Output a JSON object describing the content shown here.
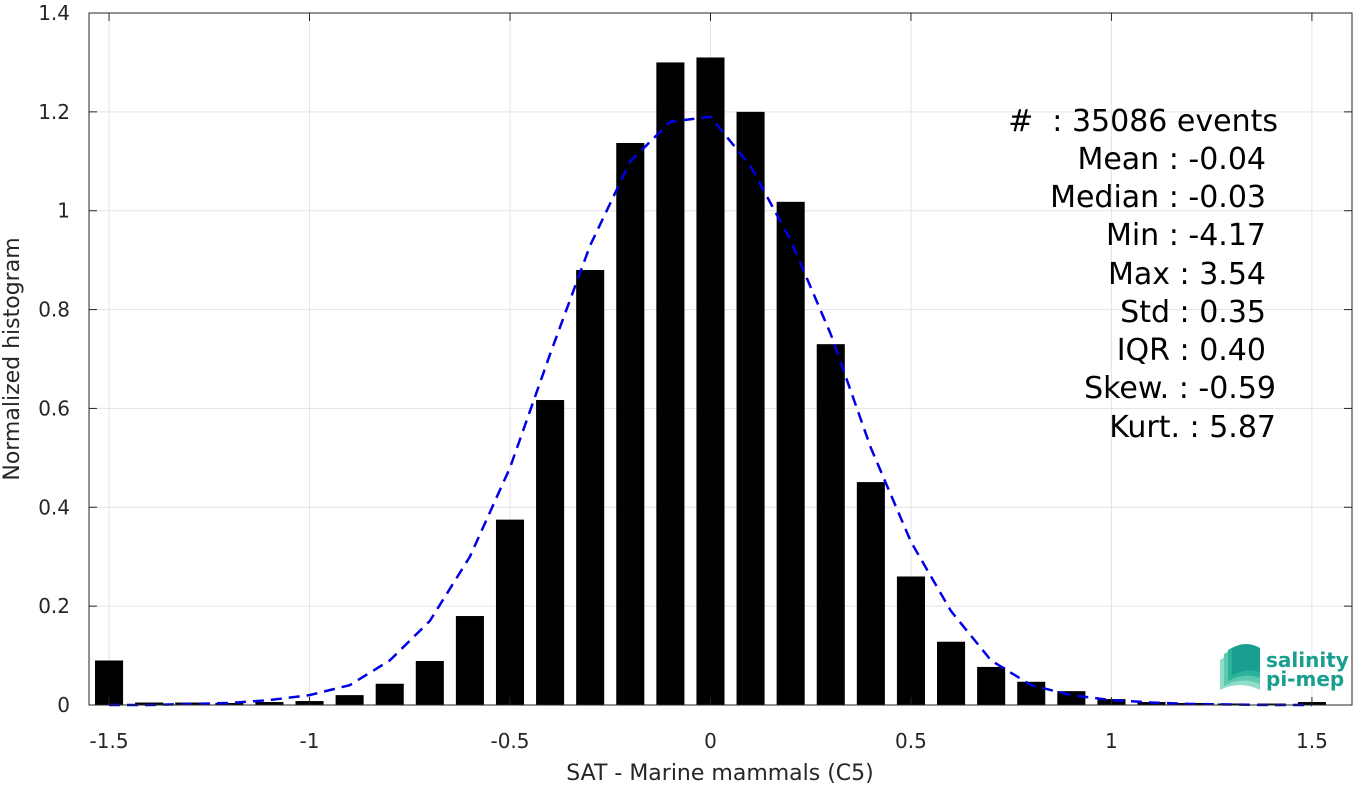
{
  "chart_data": {
    "type": "bar",
    "xlabel": "SAT - Marine mammals (C5)",
    "ylabel": "Normalized histogram",
    "xlim": [
      -1.55,
      1.6
    ],
    "ylim": [
      0,
      1.4
    ],
    "xticks": [
      -1.5,
      -1,
      -0.5,
      0,
      0.5,
      1,
      1.5
    ],
    "xtick_labels": [
      "-1.5",
      "-1",
      "-0.5",
      "0",
      "0.5",
      "1",
      "1.5"
    ],
    "yticks": [
      0,
      0.2,
      0.4,
      0.6,
      0.8,
      1,
      1.2,
      1.4
    ],
    "ytick_labels": [
      "0",
      "0.2",
      "0.4",
      "0.6",
      "0.8",
      "1",
      "1.2",
      "1.4"
    ],
    "grid": true,
    "bar_width": 0.07,
    "bar_color": "#000000",
    "bins": [
      -1.5,
      -1.4,
      -1.3,
      -1.2,
      -1.1,
      -1.0,
      -0.9,
      -0.8,
      -0.7,
      -0.6,
      -0.5,
      -0.4,
      -0.3,
      -0.2,
      -0.1,
      0.0,
      0.1,
      0.2,
      0.3,
      0.4,
      0.5,
      0.6,
      0.7,
      0.8,
      0.9,
      1.0,
      1.1,
      1.2,
      1.3,
      1.4,
      1.5
    ],
    "values": [
      0.09,
      0.005,
      0.005,
      0.004,
      0.006,
      0.008,
      0.02,
      0.043,
      0.089,
      0.18,
      0.375,
      0.617,
      0.88,
      1.137,
      1.3,
      1.31,
      1.2,
      1.018,
      0.73,
      0.451,
      0.26,
      0.128,
      0.077,
      0.047,
      0.028,
      0.012,
      0.006,
      0.004,
      0.003,
      0.003,
      0.006
    ],
    "fit_series": {
      "style": "dashed",
      "color": "#0000e6",
      "x": [
        -1.5,
        -1.4,
        -1.3,
        -1.2,
        -1.1,
        -1.0,
        -0.9,
        -0.8,
        -0.7,
        -0.6,
        -0.5,
        -0.4,
        -0.3,
        -0.2,
        -0.1,
        0.0,
        0.1,
        0.2,
        0.3,
        0.4,
        0.5,
        0.6,
        0.7,
        0.8,
        0.9,
        1.0,
        1.1,
        1.2,
        1.3,
        1.4,
        1.5
      ],
      "y": [
        0.0,
        0.0,
        0.002,
        0.004,
        0.01,
        0.02,
        0.04,
        0.09,
        0.17,
        0.3,
        0.48,
        0.71,
        0.93,
        1.1,
        1.18,
        1.19,
        1.09,
        0.94,
        0.75,
        0.52,
        0.33,
        0.19,
        0.09,
        0.04,
        0.02,
        0.01,
        0.005,
        0.002,
        0.001,
        0.0,
        0.0
      ]
    }
  },
  "stats": {
    "events": "#  : 35086 events",
    "mean": "Mean : -0.04",
    "median": "Median : -0.03",
    "min": "Min : -4.17",
    "max": "Max : 3.54",
    "std": "Std : 0.35",
    "iqr": "IQR : 0.40",
    "skew": "Skew. : -0.59",
    "kurt": "Kurt. : 5.87"
  },
  "logo": {
    "line1": "salinity",
    "line2": "pi-mep",
    "colors": [
      "#1a9e8f",
      "#2bb39a",
      "#5ec9b0",
      "#8fdcc8"
    ]
  }
}
